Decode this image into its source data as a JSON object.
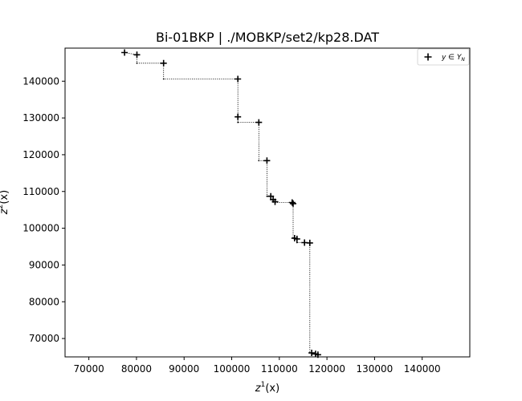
{
  "chart_data": {
    "type": "scatter",
    "title": "Bi-01BKP | ./MOBKP/set2/kp28.DAT",
    "xlabel_base": "z",
    "xlabel_sup": "1",
    "xlabel_tail": "(x)",
    "ylabel_base": "z",
    "ylabel_sup": "2",
    "ylabel_tail": "(x)",
    "xlim": [
      65000,
      150000
    ],
    "ylim": [
      65000,
      149000
    ],
    "xticks": [
      70000,
      80000,
      90000,
      100000,
      110000,
      120000,
      130000,
      140000
    ],
    "yticks": [
      70000,
      80000,
      90000,
      100000,
      110000,
      120000,
      130000,
      140000
    ],
    "legend": {
      "placement": "top-right",
      "label": "y ∈ Y",
      "label_sub": "N"
    },
    "points": [
      [
        77500,
        147800
      ],
      [
        80100,
        147200
      ],
      [
        85700,
        144900
      ],
      [
        101300,
        140600
      ],
      [
        101300,
        130300
      ],
      [
        105700,
        128800
      ],
      [
        107400,
        118400
      ],
      [
        108200,
        108700
      ],
      [
        108700,
        107800
      ],
      [
        109100,
        107200
      ],
      [
        112700,
        107000
      ],
      [
        112900,
        106700
      ],
      [
        113200,
        97300
      ],
      [
        113700,
        97100
      ],
      [
        115300,
        96100
      ],
      [
        116400,
        96000
      ],
      [
        116800,
        66100
      ],
      [
        117600,
        65800
      ],
      [
        118100,
        65600
      ]
    ],
    "staircase": [
      [
        77500,
        147800
      ],
      [
        80100,
        147200
      ],
      [
        80100,
        144900
      ],
      [
        85700,
        144900
      ],
      [
        85700,
        140600
      ],
      [
        101300,
        140600
      ],
      [
        101300,
        130300
      ],
      [
        101300,
        128800
      ],
      [
        105700,
        128800
      ],
      [
        105700,
        118400
      ],
      [
        107400,
        118400
      ],
      [
        107400,
        108700
      ],
      [
        108200,
        108700
      ],
      [
        108200,
        107800
      ],
      [
        108700,
        107800
      ],
      [
        108700,
        107200
      ],
      [
        109100,
        107200
      ],
      [
        109100,
        107000
      ],
      [
        112700,
        107000
      ],
      [
        112700,
        106700
      ],
      [
        112900,
        106700
      ],
      [
        112900,
        97300
      ],
      [
        113200,
        97300
      ],
      [
        113200,
        97100
      ],
      [
        113700,
        97100
      ],
      [
        113700,
        96100
      ],
      [
        115300,
        96100
      ],
      [
        115300,
        96000
      ],
      [
        116400,
        96000
      ],
      [
        116400,
        66100
      ],
      [
        116800,
        66100
      ],
      [
        116800,
        65800
      ],
      [
        117600,
        65800
      ],
      [
        117600,
        65600
      ],
      [
        118100,
        65600
      ]
    ]
  }
}
